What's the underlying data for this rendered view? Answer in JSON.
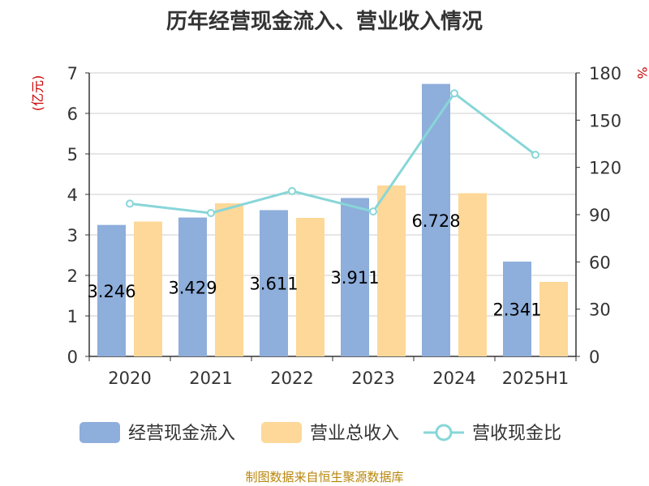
{
  "title": "历年经营现金流入、营业收入情况",
  "source": "制图数据来自恒生聚源数据库",
  "colors": {
    "bar_cash": "#8eaedb",
    "bar_revenue": "#fdd898",
    "line_ratio": "#88d6d8",
    "unit_red": "#cc0000",
    "grid": "#cccccc",
    "text": "#333333"
  },
  "chart_data": {
    "type": "bar",
    "title": "历年经营现金流入、营业收入情况",
    "categories": [
      "2020",
      "2021",
      "2022",
      "2023",
      "2024",
      "2025H1"
    ],
    "series": [
      {
        "name": "经营现金流入",
        "type": "bar",
        "axis": "left",
        "values": [
          3.246,
          3.429,
          3.611,
          3.911,
          6.728,
          2.341
        ],
        "labels": [
          "3.246",
          "3.429",
          "3.611",
          "3.911",
          "6.728",
          "2.341"
        ]
      },
      {
        "name": "营业总收入",
        "type": "bar",
        "axis": "left",
        "values": [
          3.33,
          3.78,
          3.42,
          4.22,
          4.03,
          1.84
        ]
      },
      {
        "name": "营收现金比",
        "type": "line",
        "axis": "right",
        "values": [
          97,
          91,
          105,
          92,
          167,
          128
        ]
      }
    ],
    "left_axis": {
      "unit": "(亿元)",
      "ylim": [
        0,
        7
      ],
      "ticks": [
        0,
        1,
        2,
        3,
        4,
        5,
        6,
        7
      ]
    },
    "right_axis": {
      "unit": "%",
      "ylim": [
        0,
        180
      ],
      "ticks": [
        0,
        30,
        60,
        90,
        120,
        150,
        180
      ]
    },
    "grid": true,
    "legend_position": "bottom"
  }
}
